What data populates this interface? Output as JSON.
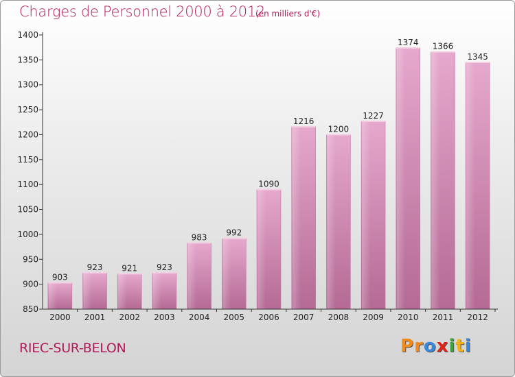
{
  "header": {
    "title": "Charges de Personnel 2000 à 2012",
    "subtitle": "(en milliers d'€)"
  },
  "footer": {
    "commune": "RIEC-SUR-BELON",
    "brand": "Proxiti",
    "brand_letters": [
      "P",
      "r",
      "o",
      "x",
      "i",
      "t",
      "i"
    ],
    "brand_colors": [
      "#f28a1c",
      "#f28a1c",
      "#3a86d8",
      "#e2231a",
      "#3aa53a",
      "#f2b31c",
      "#3a86d8"
    ]
  },
  "chart_data": {
    "type": "bar",
    "title": "Charges de Personnel 2000 à 2012",
    "subtitle": "(en milliers d'€)",
    "categories": [
      "2000",
      "2001",
      "2002",
      "2003",
      "2004",
      "2005",
      "2006",
      "2007",
      "2008",
      "2009",
      "2010",
      "2011",
      "2012"
    ],
    "values": [
      903,
      923,
      921,
      923,
      983,
      992,
      1090,
      1216,
      1200,
      1227,
      1374,
      1366,
      1345
    ],
    "yticks": [
      850,
      900,
      950,
      1000,
      1050,
      1100,
      1150,
      1200,
      1250,
      1300,
      1350,
      1400
    ],
    "ylim": [
      850,
      1400
    ],
    "grid": false,
    "bar_color": "#d98ab5",
    "axis_color": "#333333"
  }
}
